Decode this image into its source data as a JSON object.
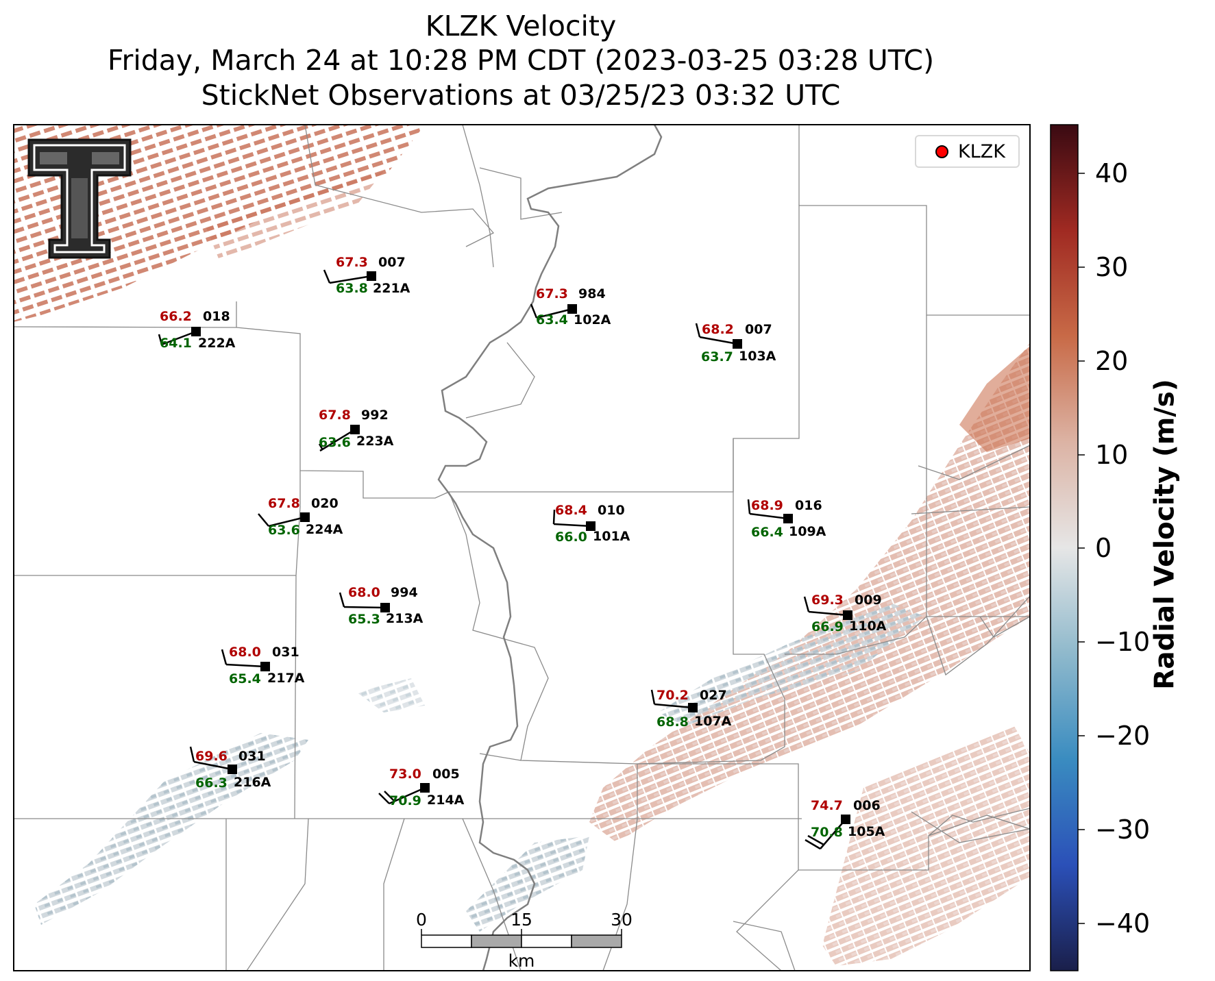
{
  "title": {
    "line1": "KLZK Velocity",
    "line2": "Friday, March 24 at 10:28 PM CDT (2023-03-25 03:28 UTC)",
    "line3": "StickNet Observations at 03/25/23 03:32 UTC"
  },
  "legend": {
    "label": "KLZK",
    "marker_color": "#ff0000"
  },
  "colorbar": {
    "label": "Radial Velocity (m/s)",
    "ticks": [
      "40",
      "30",
      "20",
      "10",
      "0",
      "−10",
      "−20",
      "−30",
      "−40"
    ],
    "range": [
      -45,
      45
    ],
    "colors": [
      "#1a1f4a",
      "#2b50b8",
      "#3a8cc0",
      "#8fb9cc",
      "#e6e6e6",
      "#dcb3a4",
      "#c86a47",
      "#a02a22",
      "#3a0a12"
    ]
  },
  "scale_bar": {
    "ticks": [
      "0",
      "15",
      "30"
    ],
    "unit": "km"
  },
  "stations": [
    {
      "id": "221A",
      "temp": "67.3",
      "dew": "63.8",
      "pres": "007"
    },
    {
      "id": "222A",
      "temp": "66.2",
      "dew": "64.1",
      "pres": "018"
    },
    {
      "id": "102A",
      "temp": "67.3",
      "dew": "63.4",
      "pres": "984"
    },
    {
      "id": "103A",
      "temp": "68.2",
      "dew": "63.7",
      "pres": "007"
    },
    {
      "id": "223A",
      "temp": "67.8",
      "dew": "63.6",
      "pres": "992"
    },
    {
      "id": "224A",
      "temp": "67.8",
      "dew": "63.6",
      "pres": "020"
    },
    {
      "id": "101A",
      "temp": "68.4",
      "dew": "66.0",
      "pres": "010"
    },
    {
      "id": "109A",
      "temp": "68.9",
      "dew": "66.4",
      "pres": "016"
    },
    {
      "id": "213A",
      "temp": "68.0",
      "dew": "65.3",
      "pres": "994"
    },
    {
      "id": "110A",
      "temp": "69.3",
      "dew": "66.9",
      "pres": "009"
    },
    {
      "id": "217A",
      "temp": "68.0",
      "dew": "65.4",
      "pres": "031"
    },
    {
      "id": "107A",
      "temp": "70.2",
      "dew": "68.8",
      "pres": "027"
    },
    {
      "id": "216A",
      "temp": "69.6",
      "dew": "66.3",
      "pres": "031"
    },
    {
      "id": "214A",
      "temp": "73.0",
      "dew": "70.9",
      "pres": "005"
    },
    {
      "id": "105A",
      "temp": "74.7",
      "dew": "70.8",
      "pres": "006"
    }
  ]
}
